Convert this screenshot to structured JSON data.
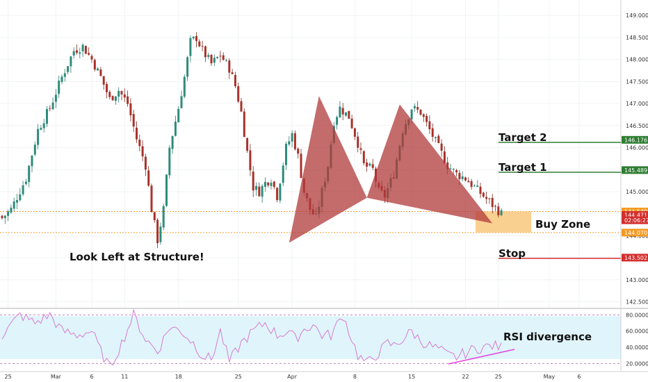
{
  "chart_data": {
    "type": "candlestick",
    "title": "",
    "price_axis": {
      "range": [
        142.35,
        149.35
      ],
      "ticks": [
        "149.000",
        "148.500",
        "148.000",
        "147.500",
        "147.000",
        "146.500",
        "146.000",
        "145.500",
        "145.000",
        "144.500",
        "144.000",
        "143.500",
        "143.000",
        "142.500"
      ],
      "tags": [
        {
          "label": "146.176",
          "value": 146.176,
          "color": "#2e7d32"
        },
        {
          "label": "145.489",
          "value": 145.489,
          "color": "#2e7d32"
        },
        {
          "label": "144.549",
          "value": 144.549,
          "color": "#f59a23"
        },
        {
          "label": "144.471",
          "value": 144.471,
          "color": "#d32f2f"
        },
        {
          "label": "02:06:27",
          "value": 144.35,
          "color": "#d32f2f"
        },
        {
          "label": "144.070",
          "value": 144.07,
          "color": "#f59a23"
        },
        {
          "label": "143.502",
          "value": 143.502,
          "color": "#d32f2f"
        }
      ]
    },
    "rsi_axis": {
      "range": [
        10,
        88
      ],
      "ticks": [
        "80.0000",
        "60.0000",
        "40.0000",
        "20.0000"
      ],
      "bands": [
        80,
        20
      ]
    },
    "time_axis": {
      "labels": [
        "25",
        "Mar",
        "6",
        "11",
        "18",
        "25",
        "Apr",
        "8",
        "15",
        "22",
        "25",
        "May",
        "6"
      ]
    },
    "close_anchors": [
      [
        0,
        144.4
      ],
      [
        3,
        144.6
      ],
      [
        8,
        145.3
      ],
      [
        12,
        146.4
      ],
      [
        16,
        146.9
      ],
      [
        20,
        147.6
      ],
      [
        24,
        148.2
      ],
      [
        27,
        148.3
      ],
      [
        30,
        148.0
      ],
      [
        33,
        147.6
      ],
      [
        36,
        147.1
      ],
      [
        39,
        147.3
      ],
      [
        42,
        147.0
      ],
      [
        45,
        146.2
      ],
      [
        48,
        145.6
      ],
      [
        50,
        144.6
      ],
      [
        52,
        143.9
      ],
      [
        54,
        144.6
      ],
      [
        56,
        146.0
      ],
      [
        59,
        146.9
      ],
      [
        61,
        147.6
      ],
      [
        63,
        148.4
      ],
      [
        65,
        148.5
      ],
      [
        67,
        148.2
      ],
      [
        70,
        147.9
      ],
      [
        73,
        148.1
      ],
      [
        76,
        147.8
      ],
      [
        78,
        147.4
      ],
      [
        80,
        146.8
      ],
      [
        82,
        145.9
      ],
      [
        84,
        145.1
      ],
      [
        86,
        145.0
      ],
      [
        88,
        145.2
      ],
      [
        90,
        145.3
      ],
      [
        92,
        144.9
      ],
      [
        95,
        146.0
      ],
      [
        97,
        146.3
      ],
      [
        99,
        145.8
      ],
      [
        101,
        145.0
      ],
      [
        103,
        144.6
      ],
      [
        105,
        144.4
      ],
      [
        107,
        145.0
      ],
      [
        109,
        145.6
      ],
      [
        111,
        146.6
      ],
      [
        113,
        146.9
      ],
      [
        116,
        146.7
      ],
      [
        119,
        146.1
      ],
      [
        121,
        145.6
      ],
      [
        124,
        145.5
      ],
      [
        126,
        145.0
      ],
      [
        128,
        144.9
      ],
      [
        131,
        145.4
      ],
      [
        134,
        146.4
      ],
      [
        137,
        146.9
      ],
      [
        140,
        146.8
      ],
      [
        143,
        146.4
      ],
      [
        146,
        146.0
      ],
      [
        149,
        145.6
      ],
      [
        152,
        145.4
      ],
      [
        155,
        145.3
      ],
      [
        158,
        145.1
      ],
      [
        161,
        144.9
      ],
      [
        164,
        144.7
      ],
      [
        167,
        144.5
      ]
    ],
    "rsi_anchors": [
      [
        0,
        55
      ],
      [
        6,
        80
      ],
      [
        11,
        70
      ],
      [
        16,
        80
      ],
      [
        20,
        60
      ],
      [
        25,
        55
      ],
      [
        30,
        60
      ],
      [
        33,
        35
      ],
      [
        36,
        15
      ],
      [
        40,
        45
      ],
      [
        44,
        80
      ],
      [
        48,
        50
      ],
      [
        52,
        35
      ],
      [
        56,
        65
      ],
      [
        60,
        60
      ],
      [
        64,
        45
      ],
      [
        67,
        30
      ],
      [
        70,
        25
      ],
      [
        73,
        60
      ],
      [
        76,
        22
      ],
      [
        80,
        45
      ],
      [
        84,
        60
      ],
      [
        88,
        70
      ],
      [
        92,
        55
      ],
      [
        96,
        60
      ],
      [
        98,
        50
      ],
      [
        101,
        62
      ],
      [
        104,
        68
      ],
      [
        107,
        55
      ],
      [
        110,
        55
      ],
      [
        114,
        80
      ],
      [
        116,
        60
      ],
      [
        119,
        30
      ],
      [
        122,
        20
      ],
      [
        125,
        30
      ],
      [
        129,
        45
      ],
      [
        131,
        42
      ],
      [
        134,
        50
      ],
      [
        137,
        60
      ],
      [
        140,
        48
      ],
      [
        143,
        42
      ],
      [
        146,
        38
      ],
      [
        149,
        30
      ],
      [
        152,
        28
      ],
      [
        155,
        33
      ],
      [
        158,
        38
      ],
      [
        161,
        40
      ],
      [
        164,
        42
      ],
      [
        167,
        40
      ]
    ]
  },
  "annotations": {
    "look_left": "Look Left at Structure!",
    "target2": "Target 2",
    "target1": "Target 1",
    "buy_zone": "Buy Zone",
    "stop": "Stop",
    "rsi_div": "RSI divergence"
  }
}
